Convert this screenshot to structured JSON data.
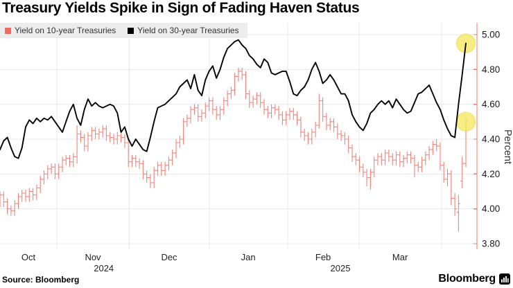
{
  "title": "Treasury Yields Spike in Sign of Fading Haven Status",
  "legend": {
    "items": [
      {
        "label": "Yield on 10-year Treasuries",
        "color": "#f4685f"
      },
      {
        "label": "Yield on 30-year Treasuries",
        "color": "#000000"
      }
    ],
    "background": "#ececec"
  },
  "source": {
    "label": "Source: Bloomberg"
  },
  "brand": {
    "name": "Bloomberg"
  },
  "colors": {
    "red_series": "#f2837b",
    "red_axis": "#f3776e",
    "black_series": "#000000",
    "gridline": "#e8e8e8",
    "tick_text": "#1a1a1a",
    "month_text": "#222222",
    "highlight_yellow": "#f5e963"
  },
  "chart_data": {
    "type": "line+ohlc",
    "title": "Treasury Yields Spike in Sign of Fading Haven Status",
    "ylabel": "Percent",
    "ylim": [
      3.8,
      5.0
    ],
    "yticks": [
      5.0,
      4.8,
      4.6,
      4.4,
      4.2,
      4.0,
      3.8
    ],
    "grid": true,
    "legend_position": "top-left",
    "x_axis": {
      "unit": "trading-day index, Oct 2024 - Apr 2025",
      "month_boundaries_day": [
        15.5,
        35.2,
        57.1,
        78.4,
        97.9,
        120.4
      ],
      "month_labels": [
        {
          "text": "Oct",
          "day": 7.75
        },
        {
          "text": "Nov",
          "day": 25.33
        },
        {
          "text": "Dec",
          "day": 46.12
        },
        {
          "text": "Jan",
          "day": 67.67
        },
        {
          "text": "Feb",
          "day": 88.09
        },
        {
          "text": "Mar",
          "day": 109.07
        }
      ],
      "year_labels": [
        {
          "text": "2024",
          "day": 28.3
        },
        {
          "text": "2025",
          "day": 92.8
        }
      ]
    },
    "series": [
      {
        "name": "Yield on 30-year Treasuries",
        "type": "line",
        "color": "#000000",
        "values": [
          4.34,
          4.39,
          4.41,
          4.35,
          4.3,
          4.29,
          4.35,
          4.47,
          4.51,
          4.49,
          4.52,
          4.5,
          4.52,
          4.51,
          4.53,
          4.5,
          4.47,
          4.44,
          4.5,
          4.56,
          4.6,
          4.52,
          4.48,
          4.57,
          4.63,
          4.59,
          4.61,
          4.59,
          4.58,
          4.59,
          4.6,
          4.59,
          4.55,
          4.44,
          4.47,
          4.4,
          4.36,
          4.4,
          4.37,
          4.34,
          4.33,
          4.41,
          4.5,
          4.58,
          4.59,
          4.6,
          4.62,
          4.64,
          4.66,
          4.7,
          4.72,
          4.74,
          4.69,
          4.77,
          4.68,
          4.65,
          4.74,
          4.79,
          4.82,
          4.75,
          4.8,
          4.87,
          4.92,
          4.94,
          4.96,
          4.97,
          4.94,
          4.92,
          4.88,
          4.86,
          4.83,
          4.81,
          4.86,
          4.84,
          4.78,
          4.77,
          4.78,
          4.79,
          4.79,
          4.73,
          4.66,
          4.65,
          4.68,
          4.7,
          4.74,
          4.8,
          4.84,
          4.79,
          4.72,
          4.74,
          4.77,
          4.74,
          4.7,
          4.66,
          4.66,
          4.62,
          4.54,
          4.5,
          4.47,
          4.45,
          4.49,
          4.55,
          4.57,
          4.6,
          4.62,
          4.6,
          4.62,
          4.58,
          4.63,
          4.6,
          4.57,
          4.55,
          4.56,
          4.61,
          4.66,
          4.67,
          4.69,
          4.71,
          4.66,
          4.61,
          4.57,
          4.51,
          4.46,
          4.42,
          4.41,
          4.6,
          4.77,
          4.95
        ]
      },
      {
        "name": "Yield on 10-year Treasuries",
        "type": "ohlc-bars",
        "color": "#f2837b",
        "bars_format": [
          "open",
          "high",
          "low",
          "close"
        ],
        "bars": [
          [
            4.05,
            4.1,
            4.01,
            4.08
          ],
          [
            4.08,
            4.1,
            4.01,
            4.04
          ],
          [
            4.04,
            4.06,
            3.97,
            4.0
          ],
          [
            4.0,
            4.02,
            3.96,
            3.99
          ],
          [
            3.99,
            4.05,
            3.96,
            4.03
          ],
          [
            4.03,
            4.09,
            4.0,
            4.07
          ],
          [
            4.07,
            4.11,
            4.04,
            4.09
          ],
          [
            4.09,
            4.11,
            4.04,
            4.07
          ],
          [
            4.07,
            4.12,
            4.04,
            4.1
          ],
          [
            4.1,
            4.12,
            4.05,
            4.08
          ],
          [
            4.08,
            4.14,
            4.05,
            4.12
          ],
          [
            4.12,
            4.19,
            4.09,
            4.17
          ],
          [
            4.17,
            4.22,
            4.14,
            4.2
          ],
          [
            4.2,
            4.25,
            4.17,
            4.23
          ],
          [
            4.23,
            4.26,
            4.2,
            4.24
          ],
          [
            4.24,
            4.26,
            4.17,
            4.2
          ],
          [
            4.2,
            4.26,
            4.17,
            4.24
          ],
          [
            4.24,
            4.3,
            4.21,
            4.28
          ],
          [
            4.28,
            4.31,
            4.25,
            4.29
          ],
          [
            4.29,
            4.31,
            4.24,
            4.27
          ],
          [
            4.27,
            4.32,
            4.24,
            4.3
          ],
          [
            4.3,
            4.48,
            4.26,
            4.43
          ],
          [
            4.43,
            4.45,
            4.38,
            4.41
          ],
          [
            4.41,
            4.43,
            4.33,
            4.36
          ],
          [
            4.36,
            4.44,
            4.33,
            4.42
          ],
          [
            4.42,
            4.47,
            4.39,
            4.45
          ],
          [
            4.45,
            4.47,
            4.4,
            4.43
          ],
          [
            4.43,
            4.46,
            4.4,
            4.44
          ],
          [
            4.44,
            4.48,
            4.41,
            4.46
          ],
          [
            4.46,
            4.48,
            4.39,
            4.42
          ],
          [
            4.42,
            4.44,
            4.38,
            4.41
          ],
          [
            4.41,
            4.43,
            4.37,
            4.4
          ],
          [
            4.4,
            4.44,
            4.37,
            4.42
          ],
          [
            4.42,
            4.44,
            4.38,
            4.41
          ],
          [
            4.41,
            4.43,
            4.35,
            4.38
          ],
          [
            4.38,
            4.4,
            4.24,
            4.27
          ],
          [
            4.27,
            4.31,
            4.24,
            4.29
          ],
          [
            4.29,
            4.31,
            4.24,
            4.27
          ],
          [
            4.27,
            4.29,
            4.23,
            4.26
          ],
          [
            4.26,
            4.28,
            4.17,
            4.2
          ],
          [
            4.2,
            4.22,
            4.15,
            4.18
          ],
          [
            4.18,
            4.2,
            4.12,
            4.15
          ],
          [
            4.15,
            4.24,
            4.12,
            4.22
          ],
          [
            4.22,
            4.27,
            4.19,
            4.25
          ],
          [
            4.25,
            4.27,
            4.19,
            4.22
          ],
          [
            4.22,
            4.27,
            4.19,
            4.25
          ],
          [
            4.25,
            4.3,
            4.22,
            4.28
          ],
          [
            4.28,
            4.34,
            4.25,
            4.32
          ],
          [
            4.32,
            4.4,
            4.29,
            4.38
          ],
          [
            4.38,
            4.42,
            4.35,
            4.4
          ],
          [
            4.4,
            4.52,
            4.37,
            4.5
          ],
          [
            4.5,
            4.54,
            4.47,
            4.52
          ],
          [
            4.52,
            4.59,
            4.49,
            4.57
          ],
          [
            4.57,
            4.6,
            4.54,
            4.58
          ],
          [
            4.58,
            4.6,
            4.5,
            4.53
          ],
          [
            4.53,
            4.57,
            4.5,
            4.55
          ],
          [
            4.55,
            4.61,
            4.52,
            4.59
          ],
          [
            4.59,
            4.64,
            4.56,
            4.62
          ],
          [
            4.62,
            4.64,
            4.54,
            4.57
          ],
          [
            4.57,
            4.59,
            4.51,
            4.54
          ],
          [
            4.54,
            4.59,
            4.51,
            4.57
          ],
          [
            4.57,
            4.64,
            4.54,
            4.62
          ],
          [
            4.62,
            4.68,
            4.59,
            4.66
          ],
          [
            4.66,
            4.7,
            4.63,
            4.68
          ],
          [
            4.68,
            4.78,
            4.65,
            4.76
          ],
          [
            4.76,
            4.81,
            4.73,
            4.79
          ],
          [
            4.79,
            4.81,
            4.74,
            4.77
          ],
          [
            4.77,
            4.79,
            4.63,
            4.66
          ],
          [
            4.66,
            4.68,
            4.58,
            4.61
          ],
          [
            4.61,
            4.65,
            4.58,
            4.63
          ],
          [
            4.63,
            4.67,
            4.6,
            4.65
          ],
          [
            4.65,
            4.67,
            4.58,
            4.61
          ],
          [
            4.61,
            4.63,
            4.54,
            4.57
          ],
          [
            4.57,
            4.59,
            4.52,
            4.55
          ],
          [
            4.55,
            4.6,
            4.52,
            4.58
          ],
          [
            4.58,
            4.6,
            4.54,
            4.57
          ],
          [
            4.57,
            4.59,
            4.51,
            4.54
          ],
          [
            4.54,
            4.56,
            4.48,
            4.51
          ],
          [
            4.51,
            4.56,
            4.48,
            4.54
          ],
          [
            4.54,
            4.58,
            4.51,
            4.56
          ],
          [
            4.56,
            4.58,
            4.51,
            4.54
          ],
          [
            4.54,
            4.56,
            4.48,
            4.51
          ],
          [
            4.51,
            4.53,
            4.41,
            4.44
          ],
          [
            4.44,
            4.46,
            4.39,
            4.42
          ],
          [
            4.42,
            4.44,
            4.37,
            4.4
          ],
          [
            4.4,
            4.46,
            4.37,
            4.44
          ],
          [
            4.44,
            4.5,
            4.41,
            4.48
          ],
          [
            4.48,
            4.66,
            4.46,
            4.62
          ],
          [
            4.62,
            4.64,
            4.5,
            4.53
          ],
          [
            4.53,
            4.55,
            4.45,
            4.48
          ],
          [
            4.48,
            4.52,
            4.45,
            4.5
          ],
          [
            4.5,
            4.52,
            4.44,
            4.47
          ],
          [
            4.47,
            4.49,
            4.4,
            4.43
          ],
          [
            4.43,
            4.45,
            4.39,
            4.42
          ],
          [
            4.42,
            4.44,
            4.37,
            4.4
          ],
          [
            4.4,
            4.42,
            4.32,
            4.35
          ],
          [
            4.35,
            4.37,
            4.27,
            4.3
          ],
          [
            4.3,
            4.32,
            4.25,
            4.28
          ],
          [
            4.28,
            4.3,
            4.21,
            4.24
          ],
          [
            4.24,
            4.26,
            4.18,
            4.21
          ],
          [
            4.21,
            4.23,
            4.13,
            4.18
          ],
          [
            4.18,
            4.23,
            4.11,
            4.21
          ],
          [
            4.21,
            4.3,
            4.18,
            4.28
          ],
          [
            4.28,
            4.32,
            4.25,
            4.3
          ],
          [
            4.3,
            4.32,
            4.25,
            4.28
          ],
          [
            4.28,
            4.34,
            4.25,
            4.32
          ],
          [
            4.32,
            4.34,
            4.27,
            4.3
          ],
          [
            4.3,
            4.32,
            4.25,
            4.28
          ],
          [
            4.28,
            4.33,
            4.25,
            4.31
          ],
          [
            4.31,
            4.33,
            4.24,
            4.27
          ],
          [
            4.27,
            4.31,
            4.24,
            4.29
          ],
          [
            4.29,
            4.33,
            4.26,
            4.31
          ],
          [
            4.31,
            4.33,
            4.26,
            4.29
          ],
          [
            4.29,
            4.31,
            4.18,
            4.25
          ],
          [
            4.25,
            4.27,
            4.21,
            4.24
          ],
          [
            4.24,
            4.3,
            4.21,
            4.28
          ],
          [
            4.28,
            4.33,
            4.25,
            4.31
          ],
          [
            4.31,
            4.36,
            4.28,
            4.34
          ],
          [
            4.34,
            4.39,
            4.31,
            4.37
          ],
          [
            4.37,
            4.4,
            4.33,
            4.36
          ],
          [
            4.36,
            4.38,
            4.22,
            4.25
          ],
          [
            4.25,
            4.27,
            4.15,
            4.17
          ],
          [
            4.17,
            4.23,
            4.13,
            4.2
          ],
          [
            4.2,
            4.22,
            4.02,
            4.06
          ],
          [
            4.06,
            4.09,
            3.96,
            4.0
          ],
          [
            3.98,
            4.08,
            3.87,
            4.03
          ],
          [
            4.16,
            4.3,
            4.12,
            4.26
          ],
          [
            4.26,
            4.52,
            4.24,
            4.5
          ]
        ]
      }
    ],
    "highlights": [
      {
        "series": "Yield on 30-year Treasuries",
        "day": 127,
        "value": 4.95
      },
      {
        "series": "Yield on 10-year Treasuries",
        "day": 127,
        "value": 4.5
      }
    ]
  }
}
